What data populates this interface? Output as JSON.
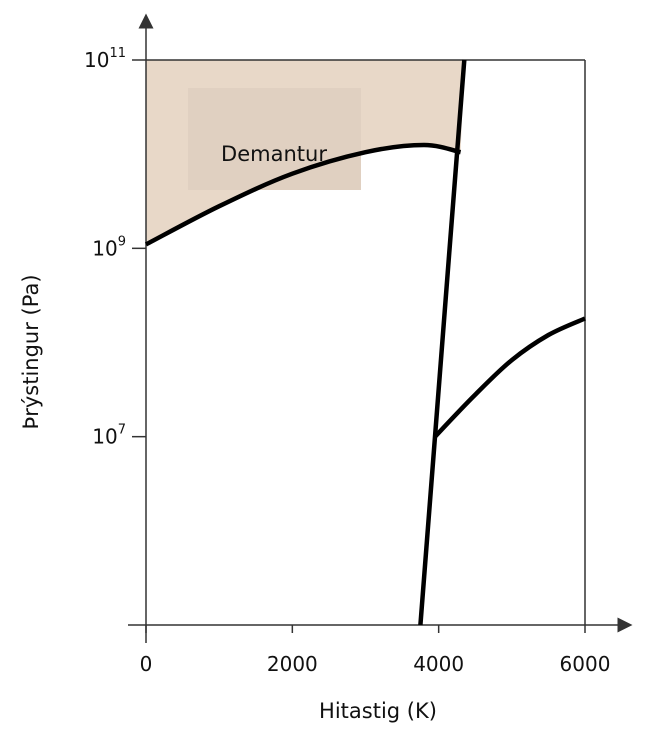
{
  "chart_data": {
    "type": "line",
    "title": "",
    "xlabel": "Hitastig (K)",
    "ylabel": "Þrýstingur (Pa)",
    "xlim": [
      0,
      6000
    ],
    "ylim_log10": [
      5,
      11
    ],
    "y_scale": "log",
    "x_ticks": [
      "0",
      "2000",
      "4000",
      "6000"
    ],
    "y_ticks": [
      {
        "base": "10",
        "exp": "11",
        "value": 100000000000.0
      },
      {
        "base": "10",
        "exp": "9",
        "value": 1000000000.0
      },
      {
        "base": "10",
        "exp": "7",
        "value": 10000000.0
      }
    ],
    "grid": false,
    "colors": {
      "diamond_region": "#e8d8c8",
      "label_box": "#e0d0c1",
      "lines": "#000000"
    },
    "regions": [
      {
        "label": "Demantur",
        "description": "shaded region above the diamond/graphite boundary, left of the melting line"
      }
    ],
    "series": [
      {
        "id": "diamond-graphite-boundary",
        "x": [
          0,
          1000,
          2000,
          3000,
          3800,
          4300
        ],
        "y": [
          1100000000.0,
          2800000000.0,
          6200000000.0,
          10500000000.0,
          12500000000.0,
          10500000000.0
        ]
      },
      {
        "id": "melting-line",
        "x": [
          3750,
          3950,
          4150,
          4350
        ],
        "y": [
          100000.0,
          10000000.0,
          1000000000.0,
          100000000000.0
        ]
      },
      {
        "id": "vapor-boundary",
        "x": [
          3950,
          4500,
          5000,
          5500,
          6000
        ],
        "y": [
          10000000.0,
          28000000.0,
          65000000.0,
          120000000.0,
          180000000.0
        ]
      }
    ]
  }
}
